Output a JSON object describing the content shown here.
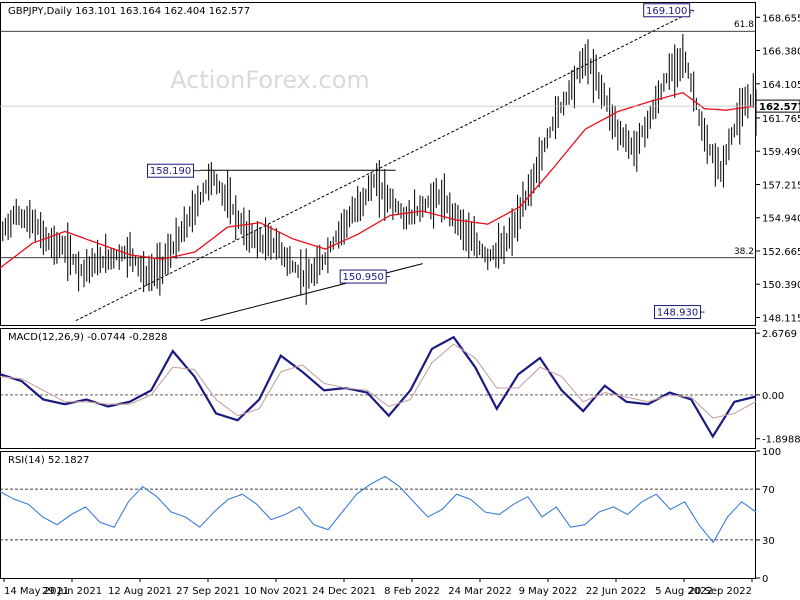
{
  "chart_data": {
    "type": "line",
    "title": "GBPJPY,Daily",
    "ohlc_readout": "163.101 163.164 162.404 162.577",
    "watermark": "ActionForex.com",
    "last_price": 162.577,
    "price_axis": {
      "ylim": [
        147.6,
        169.7
      ],
      "ticks": [
        "168.655",
        "166.380",
        "164.105",
        "161.765",
        "159.490",
        "157.215",
        "154.940",
        "152.665",
        "150.390",
        "148.115"
      ]
    },
    "x_labels": [
      "14 May 2021",
      "29 Jun 2021",
      "12 Aug 2021",
      "27 Sep 2021",
      "10 Nov 2021",
      "24 Dec 2021",
      "8 Feb 2022",
      "24 Mar 2022",
      "9 May 2022",
      "22 Jun 2022",
      "5 Aug 2022",
      "20 Sep 2022"
    ],
    "annotations": [
      {
        "label": "158.190",
        "x": 37,
        "y": 158.19
      },
      {
        "label": "150.950",
        "x": 72,
        "y": 150.95
      },
      {
        "label": "169.100",
        "x": 128,
        "y": 169.1
      },
      {
        "label": "148.930",
        "x": 130,
        "y": 148.93
      }
    ],
    "fib_levels": [
      {
        "label": "61.8",
        "y": 167.7
      },
      {
        "label": "38.2",
        "y": 152.2
      }
    ],
    "trendlines": [
      {
        "from": [
          14,
          147.9
        ],
        "to": [
          128,
          169.1
        ],
        "style": "dashed"
      },
      {
        "from": [
          37,
          158.19
        ],
        "to": [
          73,
          158.19
        ],
        "style": "solid"
      },
      {
        "from": [
          37,
          147.9
        ],
        "to": [
          78,
          151.8
        ],
        "style": "solid"
      }
    ],
    "price_series": {
      "name": "GBPJPY",
      "x": [
        0,
        3,
        6,
        9,
        12,
        15,
        18,
        21,
        24,
        27,
        30,
        33,
        36,
        39,
        42,
        45,
        48,
        51,
        54,
        57,
        60,
        63,
        66,
        69,
        72,
        75,
        78,
        81,
        84,
        87,
        90,
        93,
        96,
        99,
        102,
        105,
        108,
        111,
        114,
        117,
        120,
        123,
        126,
        128,
        130,
        133,
        136,
        139,
        139.5
      ],
      "values": [
        153.8,
        155.2,
        154.6,
        153.3,
        152.8,
        151.4,
        151.9,
        152.3,
        152.6,
        150.9,
        151.7,
        153.5,
        155.6,
        157.8,
        156.2,
        154.1,
        153.3,
        153.1,
        151.6,
        150.7,
        152.2,
        154.3,
        155.6,
        157.4,
        156.2,
        154.9,
        155.7,
        156.4,
        155.1,
        153.4,
        152.3,
        152.9,
        155.2,
        158.2,
        161.4,
        163.6,
        165.9,
        163.8,
        160.9,
        159.6,
        161.8,
        164.5,
        166.1,
        163.6,
        160.2,
        158.1,
        161.6,
        163.4,
        162.577
      ]
    },
    "ma_series": {
      "name": "MA",
      "x": [
        0,
        6,
        12,
        18,
        24,
        30,
        36,
        42,
        48,
        54,
        60,
        66,
        72,
        78,
        84,
        90,
        96,
        102,
        108,
        114,
        120,
        126,
        130,
        134,
        139.5
      ],
      "values": [
        151.5,
        153.2,
        154.0,
        153.2,
        152.4,
        152.1,
        152.6,
        154.3,
        154.6,
        153.5,
        152.8,
        153.8,
        155.1,
        155.4,
        154.8,
        154.5,
        155.7,
        158.3,
        161.0,
        162.2,
        162.9,
        163.5,
        162.4,
        162.3,
        162.6
      ]
    },
    "macd": {
      "header": "MACD(12,26,9) -0.0744 -0.2828",
      "ylim": [
        -2.3,
        2.9
      ],
      "ticks": [
        "2.6769",
        "0.00",
        "-1.8988"
      ],
      "series": [
        {
          "name": "MACD",
          "values": [
            0.9,
            0.6,
            -0.2,
            -0.4,
            -0.2,
            -0.5,
            -0.3,
            0.2,
            1.9,
            0.8,
            -0.8,
            -1.1,
            -0.2,
            1.7,
            1.0,
            0.2,
            0.3,
            0.1,
            -0.9,
            0.2,
            2.0,
            2.5,
            1.2,
            -0.6,
            0.9,
            1.6,
            0.2,
            -0.7,
            0.4,
            -0.3,
            -0.4,
            0.1,
            -0.2,
            -1.8,
            -0.3,
            -0.07
          ]
        },
        {
          "name": "Signal",
          "values": [
            0.8,
            0.7,
            0.2,
            -0.3,
            -0.3,
            -0.4,
            -0.4,
            0.0,
            1.2,
            1.1,
            -0.2,
            -0.9,
            -0.6,
            1.0,
            1.3,
            0.5,
            0.3,
            0.2,
            -0.5,
            -0.2,
            1.4,
            2.2,
            1.6,
            0.3,
            0.3,
            1.2,
            0.8,
            -0.3,
            0.1,
            -0.1,
            -0.3,
            0.0,
            -0.1,
            -1.0,
            -0.8,
            -0.28
          ]
        }
      ]
    },
    "rsi": {
      "header": "RSI(14) 52.1827",
      "ylim": [
        0,
        100
      ],
      "ticks": [
        "100",
        "70",
        "30",
        "0"
      ],
      "levels": [
        70,
        30
      ],
      "values": [
        68,
        62,
        58,
        48,
        42,
        50,
        56,
        44,
        40,
        60,
        72,
        64,
        52,
        48,
        40,
        52,
        62,
        66,
        58,
        46,
        50,
        56,
        42,
        38,
        52,
        66,
        74,
        80,
        72,
        60,
        48,
        54,
        66,
        62,
        52,
        50,
        58,
        64,
        48,
        56,
        40,
        42,
        52,
        56,
        50,
        60,
        66,
        54,
        60,
        42,
        28,
        48,
        60,
        52
      ]
    },
    "colors": {
      "price": "#4f6fa8",
      "ma": "#e8101e",
      "macd": "#1a1a80",
      "signal": "#c8a3a3",
      "rsi": "#3c7ed8",
      "annotation_text": "#1a1a80"
    }
  }
}
